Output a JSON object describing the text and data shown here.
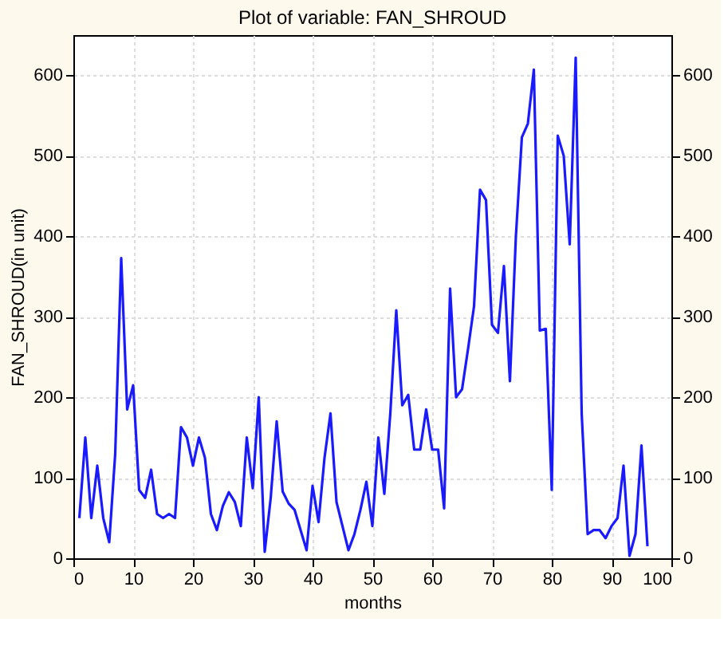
{
  "chart_data": {
    "type": "line",
    "title": "Plot of variable: FAN_SHROUD",
    "xlabel": "months",
    "ylabel": "FAN_SHROUD(in unit)",
    "x": [
      1,
      2,
      3,
      4,
      5,
      6,
      7,
      8,
      9,
      10,
      11,
      12,
      13,
      14,
      15,
      16,
      17,
      18,
      19,
      20,
      21,
      22,
      23,
      24,
      25,
      26,
      27,
      28,
      29,
      30,
      31,
      32,
      33,
      34,
      35,
      36,
      37,
      38,
      39,
      40,
      41,
      42,
      43,
      44,
      45,
      46,
      47,
      48,
      49,
      50,
      51,
      52,
      53,
      54,
      55,
      56,
      57,
      58,
      59,
      60,
      61,
      62,
      63,
      64,
      65,
      66,
      67,
      68,
      69,
      70,
      71,
      72,
      73,
      74,
      75,
      76,
      77,
      78,
      79,
      80,
      81,
      82,
      83,
      84,
      85,
      86,
      87,
      88,
      89,
      90,
      91,
      92,
      93,
      94,
      95,
      96
    ],
    "series": [
      {
        "color": "#1a1aff",
        "values": [
          50,
          150,
          50,
          115,
          50,
          20,
          130,
          373,
          185,
          215,
          85,
          75,
          110,
          55,
          50,
          55,
          50,
          163,
          150,
          115,
          150,
          125,
          55,
          35,
          65,
          82,
          70,
          40,
          150,
          87,
          200,
          8,
          75,
          170,
          83,
          68,
          60,
          35,
          10,
          90,
          45,
          125,
          180,
          70,
          40,
          10,
          30,
          60,
          95,
          40,
          150,
          80,
          180,
          308,
          190,
          203,
          135,
          135,
          185,
          135,
          135,
          62,
          335,
          200,
          210,
          260,
          313,
          458,
          445,
          290,
          280,
          363,
          220,
          400,
          523,
          540,
          607,
          283,
          285,
          85,
          525,
          500,
          390,
          622,
          180,
          30,
          35,
          35,
          25,
          40,
          50,
          115,
          3,
          30,
          140,
          15
        ]
      }
    ],
    "xlim": [
      0,
      100
    ],
    "xticks": [
      0,
      10,
      20,
      30,
      40,
      50,
      60,
      70,
      80,
      90,
      100
    ],
    "ylim": [
      0,
      650
    ],
    "yticks": [
      0,
      100,
      200,
      300,
      400,
      500,
      600
    ],
    "y2lim": [
      0,
      650
    ],
    "y2ticks": [
      0,
      100,
      200,
      300,
      400,
      500,
      600
    ],
    "grid": true,
    "marker": "none",
    "line_style": "solid",
    "legend": false
  }
}
